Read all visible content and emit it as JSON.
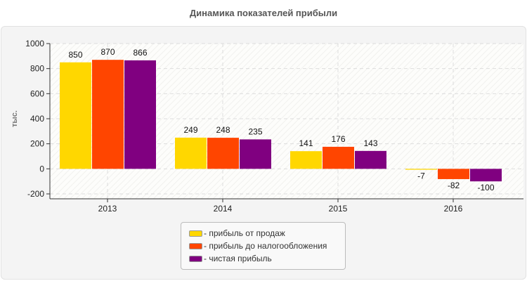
{
  "chart_data": {
    "type": "bar",
    "title": "Динамика показателей прибыли",
    "ylabel": "тыс.",
    "xlabel": "",
    "categories": [
      "2013",
      "2014",
      "2015",
      "2016"
    ],
    "ylim": [
      -200,
      1000
    ],
    "yticks": [
      -200,
      0,
      200,
      400,
      600,
      800,
      1000
    ],
    "grid": true,
    "legend_position": "bottom",
    "series": [
      {
        "name": "- прибыль от продаж",
        "color": "#FFD700",
        "values": [
          850,
          249,
          141,
          -7
        ]
      },
      {
        "name": "- прибыль до налогообложения",
        "color": "#FF4500",
        "values": [
          870,
          248,
          176,
          -82
        ]
      },
      {
        "name": "- чистая прибыль",
        "color": "#800080",
        "values": [
          866,
          235,
          143,
          -100
        ]
      }
    ]
  }
}
